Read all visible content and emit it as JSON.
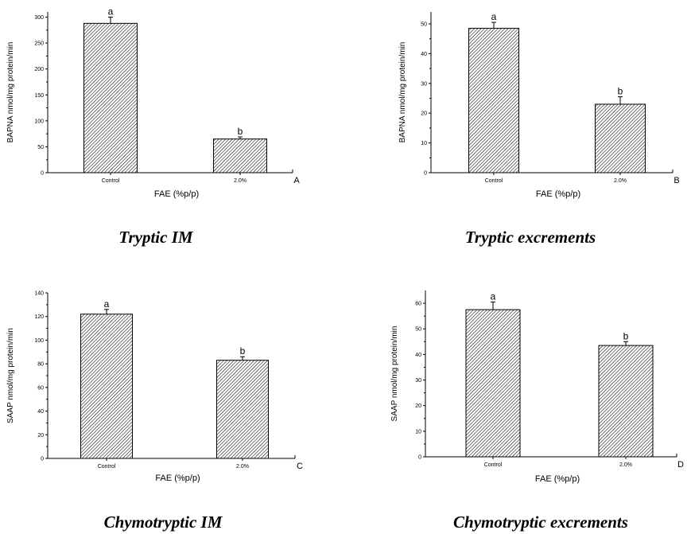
{
  "chart_data": [
    {
      "type": "bar",
      "categories": [
        "Control",
        "2.0%"
      ],
      "values": [
        288,
        65
      ],
      "errors": [
        12,
        4
      ],
      "significance": [
        "a",
        "b"
      ],
      "xlabel": "FAE (%p/p)",
      "ylabel": "BAPNA nmol/mg protein/min",
      "ylim": [
        0,
        310
      ],
      "yticks": [
        "0",
        "50",
        "100",
        "150",
        "200",
        "250",
        "300"
      ],
      "panel_letter": "A",
      "caption": "Tryptic IM",
      "pattern": "diagonal-hatch"
    },
    {
      "type": "bar",
      "categories": [
        "Control",
        "2.0%"
      ],
      "values": [
        48.5,
        23
      ],
      "errors": [
        2,
        2.5
      ],
      "significance": [
        "a",
        "b"
      ],
      "xlabel": "FAE (%p/p)",
      "ylabel": "BAPNA nmol/mg protein/min",
      "ylim": [
        0,
        54
      ],
      "yticks": [
        "0",
        "10",
        "20",
        "30",
        "40",
        "50"
      ],
      "panel_letter": "B",
      "caption": "Tryptic excrements",
      "pattern": "diagonal-hatch"
    },
    {
      "type": "bar",
      "categories": [
        "Control",
        "2.0%"
      ],
      "values": [
        122,
        83
      ],
      "errors": [
        4,
        3
      ],
      "significance": [
        "a",
        "b"
      ],
      "xlabel": "FAE (%p/p)",
      "ylabel": "SAAP nmol/mg protein/min",
      "ylim": [
        0,
        140
      ],
      "yticks": [
        "0",
        "20",
        "40",
        "60",
        "80",
        "100",
        "120",
        "140"
      ],
      "panel_letter": "C",
      "caption": "Chymotryptic IM",
      "pattern": "diagonal-hatch"
    },
    {
      "type": "bar",
      "categories": [
        "Control",
        "2.0%"
      ],
      "values": [
        57.5,
        43.5
      ],
      "errors": [
        3,
        1.5
      ],
      "significance": [
        "a",
        "b"
      ],
      "xlabel": "FAE (%p/p)",
      "ylabel": "SAAP nmol/mg protein/min",
      "ylim": [
        0,
        65
      ],
      "yticks": [
        "0",
        "10",
        "20",
        "30",
        "40",
        "50",
        "60"
      ],
      "panel_letter": "D",
      "caption": "Chymotryptic excrements",
      "pattern": "diagonal-hatch"
    }
  ]
}
